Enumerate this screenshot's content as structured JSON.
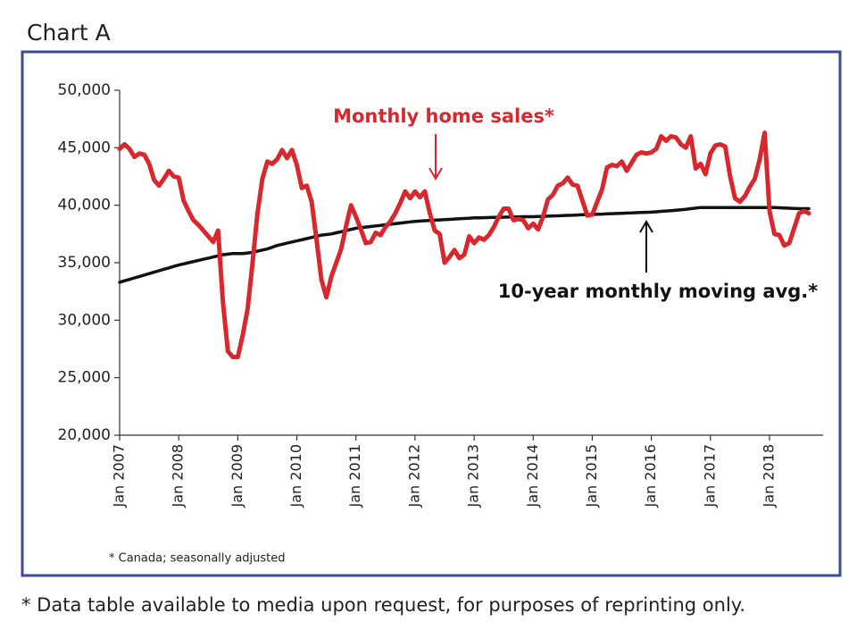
{
  "chart_data": {
    "type": "line",
    "title": "Chart A",
    "footnote": "* Canada; seasonally adjusted",
    "caption": "* Data table available to media upon request, for purposes of reprinting only.",
    "categories": [
      "Jan 2007",
      null,
      null,
      null,
      null,
      null,
      null,
      null,
      null,
      null,
      null,
      null,
      "Jan 2008",
      null,
      null,
      null,
      null,
      null,
      null,
      null,
      null,
      null,
      null,
      null,
      "Jan 2009",
      null,
      null,
      null,
      null,
      null,
      null,
      null,
      null,
      null,
      null,
      null,
      "Jan 2010",
      null,
      null,
      null,
      null,
      null,
      null,
      null,
      null,
      null,
      null,
      null,
      "Jan 2011",
      null,
      null,
      null,
      null,
      null,
      null,
      null,
      null,
      null,
      null,
      null,
      "Jan 2012",
      null,
      null,
      null,
      null,
      null,
      null,
      null,
      null,
      null,
      null,
      null,
      "Jan 2013",
      null,
      null,
      null,
      null,
      null,
      null,
      null,
      null,
      null,
      null,
      null,
      "Jan 2014",
      null,
      null,
      null,
      null,
      null,
      null,
      null,
      null,
      null,
      null,
      null,
      "Jan 2015",
      null,
      null,
      null,
      null,
      null,
      null,
      null,
      null,
      null,
      null,
      null,
      "Jan 2016",
      null,
      null,
      null,
      null,
      null,
      null,
      null,
      null,
      null,
      null,
      null,
      "Jan 2017",
      null,
      null,
      null,
      null,
      null,
      null,
      null,
      null,
      null,
      null,
      null,
      "Jan 2018",
      null,
      null,
      null,
      null,
      null,
      null,
      null,
      null
    ],
    "series": [
      {
        "name": "Monthly home sales*",
        "color": "#d9272e",
        "values": [
          44900,
          45300,
          44900,
          44200,
          44500,
          44400,
          43600,
          42200,
          41700,
          42300,
          43000,
          42500,
          42400,
          40400,
          39500,
          38700,
          38300,
          37800,
          37300,
          36800,
          37800,
          31500,
          27300,
          26800,
          26800,
          28700,
          31000,
          35000,
          39300,
          42300,
          43800,
          43600,
          44000,
          44800,
          44100,
          44800,
          43500,
          41500,
          41700,
          40300,
          37000,
          33500,
          32000,
          33800,
          35000,
          36200,
          38200,
          40000,
          39000,
          37900,
          36700,
          36800,
          37600,
          37400,
          38100,
          38600,
          39300,
          40200,
          41200,
          40600,
          41200,
          40700,
          41200,
          39300,
          37800,
          37500,
          35000,
          35500,
          36100,
          35400,
          35700,
          37300,
          36700,
          37200,
          37000,
          37400,
          38100,
          39000,
          39700,
          39700,
          38700,
          38800,
          38700,
          38000,
          38400,
          37900,
          39000,
          40500,
          40900,
          41700,
          41900,
          42400,
          41800,
          41700,
          40400,
          39100,
          39200,
          40300,
          41400,
          43300,
          43500,
          43400,
          43800,
          43000,
          43700,
          44400,
          44600,
          44500,
          44600,
          44900,
          46000,
          45600,
          46000,
          45900,
          45300,
          45000,
          46000,
          43200,
          43600,
          42700,
          44500,
          45200,
          45300,
          45100,
          42500,
          40600,
          40300,
          40800,
          41600,
          42300,
          44000,
          46300,
          39500,
          37500,
          37400,
          36500,
          36700,
          38000,
          39300,
          39500,
          39300
        ]
      },
      {
        "name": "10-year monthly moving avg.*",
        "color": "#111111",
        "values": [
          33300,
          33430,
          33550,
          33680,
          33800,
          33930,
          34050,
          34180,
          34300,
          34430,
          34550,
          34680,
          34800,
          34900,
          35000,
          35100,
          35200,
          35300,
          35400,
          35500,
          35600,
          35700,
          35750,
          35800,
          35800,
          35800,
          35850,
          35900,
          36000,
          36100,
          36200,
          36350,
          36500,
          36600,
          36700,
          36800,
          36900,
          37000,
          37100,
          37200,
          37300,
          37400,
          37450,
          37500,
          37600,
          37700,
          37800,
          37900,
          38000,
          38050,
          38100,
          38150,
          38200,
          38250,
          38300,
          38350,
          38400,
          38450,
          38500,
          38550,
          38600,
          38620,
          38650,
          38670,
          38700,
          38720,
          38750,
          38770,
          38800,
          38820,
          38850,
          38870,
          38900,
          38910,
          38920,
          38930,
          38940,
          38950,
          38960,
          38970,
          38980,
          38990,
          39000,
          39000,
          39000,
          39020,
          39030,
          39050,
          39070,
          39080,
          39100,
          39120,
          39130,
          39150,
          39170,
          39180,
          39200,
          39220,
          39230,
          39250,
          39270,
          39280,
          39300,
          39320,
          39330,
          39350,
          39370,
          39380,
          39400,
          39430,
          39470,
          39500,
          39530,
          39570,
          39600,
          39650,
          39700,
          39750,
          39800,
          39800,
          39800,
          39800,
          39800,
          39800,
          39800,
          39800,
          39800,
          39800,
          39800,
          39800,
          39800,
          39800,
          39800,
          39800,
          39780,
          39760,
          39740,
          39720,
          39700,
          39700,
          39700
        ]
      }
    ],
    "ylim": [
      20000,
      50000
    ],
    "yticks": [
      {
        "value": 20000,
        "label": "20,000"
      },
      {
        "value": 25000,
        "label": "25,000"
      },
      {
        "value": 30000,
        "label": "30,000"
      },
      {
        "value": 35000,
        "label": "35,000"
      },
      {
        "value": 40000,
        "label": "40,000"
      },
      {
        "value": 45000,
        "label": "45,000"
      },
      {
        "value": 50000,
        "label": "50,000"
      }
    ],
    "grid": false
  }
}
